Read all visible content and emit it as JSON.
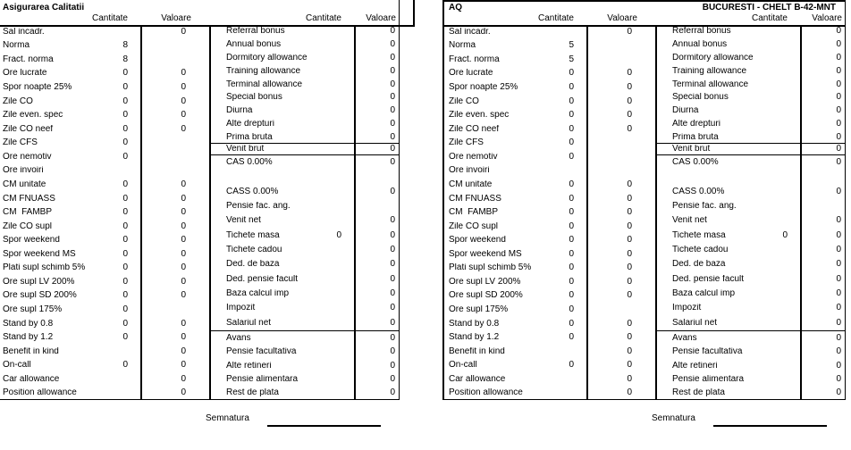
{
  "colors": {
    "background": "#ffffff",
    "text": "#000000",
    "line": "#000000"
  },
  "panels": [
    {
      "header": {
        "title_left": "Asigurarea Calitatii",
        "title_right": "",
        "cantitate": "Cantitate",
        "valoare": "Valoare"
      },
      "main_rows": [
        {
          "label": "Sal incadr.",
          "cant": "",
          "val": "0"
        },
        {
          "label": "Norma",
          "cant": "8",
          "val": ""
        },
        {
          "label": "Fract. norma",
          "cant": "8",
          "val": ""
        },
        {
          "label": "Ore lucrate",
          "cant": "0",
          "val": "0"
        },
        {
          "label": "Spor noapte 25%",
          "cant": "0",
          "val": "0"
        },
        {
          "label": "Zile CO",
          "cant": "0",
          "val": "0"
        },
        {
          "label": "Zile even. spec",
          "cant": "0",
          "val": "0"
        },
        {
          "label": "Zile CO neef",
          "cant": "0",
          "val": "0"
        },
        {
          "label": "Zile CFS",
          "cant": "0",
          "val": ""
        },
        {
          "label": "Ore nemotiv",
          "cant": "0",
          "val": ""
        },
        {
          "label": "Ore invoiri",
          "cant": "",
          "val": ""
        },
        {
          "label": "CM unitate",
          "cant": "0",
          "val": "0"
        },
        {
          "label": "CM FNUASS",
          "cant": "0",
          "val": "0"
        },
        {
          "label": "CM  FAMBP",
          "cant": "0",
          "val": "0"
        },
        {
          "label": "Zile CO supl",
          "cant": "0",
          "val": "0"
        },
        {
          "label": "Spor weekend",
          "cant": "0",
          "val": "0"
        },
        {
          "label": "Spor weekend MS",
          "cant": "0",
          "val": "0"
        },
        {
          "label": "Plati supl schimb 5%",
          "cant": "0",
          "val": "0"
        },
        {
          "label": "Ore supl LV 200%",
          "cant": "0",
          "val": "0"
        },
        {
          "label": "Ore supl SD 200%",
          "cant": "0",
          "val": "0"
        },
        {
          "label": "Ore supl 175%",
          "cant": "0",
          "val": ""
        },
        {
          "label": "Stand by 0.8",
          "cant": "0",
          "val": "0"
        },
        {
          "label": "Stand by 1.2",
          "cant": "0",
          "val": "0"
        },
        {
          "label": "Benefit in kind",
          "cant": "",
          "val": "0"
        },
        {
          "label": "On-call",
          "cant": "0",
          "val": "0"
        },
        {
          "label": "Car allowance",
          "cant": "",
          "val": "0"
        },
        {
          "label": "Position allowance",
          "cant": "",
          "val": "0"
        }
      ],
      "bonus_rows": [
        {
          "label": "Referral bonus",
          "cant": "",
          "val": "0"
        },
        {
          "label": "Annual bonus",
          "cant": "",
          "val": "0"
        },
        {
          "label": "Dormitory allowance",
          "cant": "",
          "val": "0"
        },
        {
          "label": "Training allowance",
          "cant": "",
          "val": "0"
        },
        {
          "label": "Terminal allowance",
          "cant": "",
          "val": "0"
        },
        {
          "label": "Special bonus",
          "cant": "",
          "val": "0"
        },
        {
          "label": "Diurna",
          "cant": "",
          "val": "0"
        },
        {
          "label": "Alte drepturi",
          "cant": "",
          "val": "0"
        },
        {
          "label": "Prima bruta",
          "cant": "",
          "val": "0"
        }
      ],
      "venit_brut_row": [
        {
          "label": "Venit brut",
          "cant": "",
          "val": "0"
        }
      ],
      "deduction_rows": [
        {
          "label": "CAS 0.00%",
          "cant": "",
          "val": "0"
        },
        {
          "label": "",
          "cant": "",
          "val": ""
        },
        {
          "label": "CASS 0.00%",
          "cant": "",
          "val": "0"
        },
        {
          "label": "Pensie fac. ang.",
          "cant": "",
          "val": ""
        },
        {
          "label": "Venit net",
          "cant": "",
          "val": "0"
        },
        {
          "label": "Tichete masa",
          "cant": "0",
          "val": "0"
        },
        {
          "label": "Tichete cadou",
          "cant": "",
          "val": "0"
        },
        {
          "label": "Ded. de baza",
          "cant": "",
          "val": "0"
        },
        {
          "label": "Ded. pensie facult",
          "cant": "",
          "val": "0"
        },
        {
          "label": "Baza calcul imp",
          "cant": "",
          "val": "0"
        },
        {
          "label": "Impozit",
          "cant": "",
          "val": "0"
        },
        {
          "label": "Salariul net",
          "cant": "",
          "val": "0"
        }
      ],
      "retention_rows": [
        {
          "label": "Avans",
          "cant": "",
          "val": "0"
        },
        {
          "label": "Pensie facultativa",
          "cant": "",
          "val": "0"
        },
        {
          "label": "Alte retineri",
          "cant": "",
          "val": "0"
        },
        {
          "label": "Pensie alimentara",
          "cant": "",
          "val": "0"
        },
        {
          "label": "Rest de plata",
          "cant": "",
          "val": "0"
        }
      ],
      "signature_label": "Semnatura"
    },
    {
      "header": {
        "title_left": "AQ",
        "title_right": "BUCURESTI - CHELT B-42-MNT",
        "cantitate": "Cantitate",
        "valoare": "Valoare"
      },
      "main_rows": [
        {
          "label": "Sal incadr.",
          "cant": "",
          "val": "0"
        },
        {
          "label": "Norma",
          "cant": "5",
          "val": ""
        },
        {
          "label": "Fract. norma",
          "cant": "5",
          "val": ""
        },
        {
          "label": "Ore lucrate",
          "cant": "0",
          "val": "0"
        },
        {
          "label": "Spor noapte 25%",
          "cant": "0",
          "val": "0"
        },
        {
          "label": "Zile CO",
          "cant": "0",
          "val": "0"
        },
        {
          "label": "Zile even. spec",
          "cant": "0",
          "val": "0"
        },
        {
          "label": "Zile CO neef",
          "cant": "0",
          "val": "0"
        },
        {
          "label": "Zile CFS",
          "cant": "0",
          "val": ""
        },
        {
          "label": "Ore nemotiv",
          "cant": "0",
          "val": ""
        },
        {
          "label": "Ore invoiri",
          "cant": "",
          "val": ""
        },
        {
          "label": "CM unitate",
          "cant": "0",
          "val": "0"
        },
        {
          "label": "CM FNUASS",
          "cant": "0",
          "val": "0"
        },
        {
          "label": "CM  FAMBP",
          "cant": "0",
          "val": "0"
        },
        {
          "label": "Zile CO supl",
          "cant": "0",
          "val": "0"
        },
        {
          "label": "Spor weekend",
          "cant": "0",
          "val": "0"
        },
        {
          "label": "Spor weekend MS",
          "cant": "0",
          "val": "0"
        },
        {
          "label": "Plati supl schimb 5%",
          "cant": "0",
          "val": "0"
        },
        {
          "label": "Ore supl LV 200%",
          "cant": "0",
          "val": "0"
        },
        {
          "label": "Ore supl SD 200%",
          "cant": "0",
          "val": "0"
        },
        {
          "label": "Ore supl 175%",
          "cant": "0",
          "val": ""
        },
        {
          "label": "Stand by 0.8",
          "cant": "0",
          "val": "0"
        },
        {
          "label": "Stand by 1.2",
          "cant": "0",
          "val": "0"
        },
        {
          "label": "Benefit in kind",
          "cant": "",
          "val": "0"
        },
        {
          "label": "On-call",
          "cant": "0",
          "val": "0"
        },
        {
          "label": "Car allowance",
          "cant": "",
          "val": "0"
        },
        {
          "label": "Position allowance",
          "cant": "",
          "val": "0"
        }
      ],
      "bonus_rows": [
        {
          "label": "Referral bonus",
          "cant": "",
          "val": "0"
        },
        {
          "label": "Annual bonus",
          "cant": "",
          "val": "0"
        },
        {
          "label": "Dormitory allowance",
          "cant": "",
          "val": "0"
        },
        {
          "label": "Training allowance",
          "cant": "",
          "val": "0"
        },
        {
          "label": "Terminal allowance",
          "cant": "",
          "val": "0"
        },
        {
          "label": "Special bonus",
          "cant": "",
          "val": "0"
        },
        {
          "label": "Diurna",
          "cant": "",
          "val": "0"
        },
        {
          "label": "Alte drepturi",
          "cant": "",
          "val": "0"
        },
        {
          "label": "Prima bruta",
          "cant": "",
          "val": "0"
        }
      ],
      "venit_brut_row": [
        {
          "label": "Venit brut",
          "cant": "",
          "val": "0"
        }
      ],
      "deduction_rows": [
        {
          "label": "CAS 0.00%",
          "cant": "",
          "val": "0"
        },
        {
          "label": "",
          "cant": "",
          "val": ""
        },
        {
          "label": "CASS 0.00%",
          "cant": "",
          "val": "0"
        },
        {
          "label": "Pensie fac. ang.",
          "cant": "",
          "val": ""
        },
        {
          "label": "Venit net",
          "cant": "",
          "val": "0"
        },
        {
          "label": "Tichete masa",
          "cant": "0",
          "val": "0"
        },
        {
          "label": "Tichete cadou",
          "cant": "",
          "val": "0"
        },
        {
          "label": "Ded. de baza",
          "cant": "",
          "val": "0"
        },
        {
          "label": "Ded. pensie facult",
          "cant": "",
          "val": "0"
        },
        {
          "label": "Baza calcul imp",
          "cant": "",
          "val": "0"
        },
        {
          "label": "Impozit",
          "cant": "",
          "val": "0"
        },
        {
          "label": "Salariul net",
          "cant": "",
          "val": "0"
        }
      ],
      "retention_rows": [
        {
          "label": "Avans",
          "cant": "",
          "val": "0"
        },
        {
          "label": "Pensie facultativa",
          "cant": "",
          "val": "0"
        },
        {
          "label": "Alte retineri",
          "cant": "",
          "val": "0"
        },
        {
          "label": "Pensie alimentara",
          "cant": "",
          "val": "0"
        },
        {
          "label": "Rest de plata",
          "cant": "",
          "val": "0"
        }
      ],
      "signature_label": "Semnatura"
    }
  ]
}
